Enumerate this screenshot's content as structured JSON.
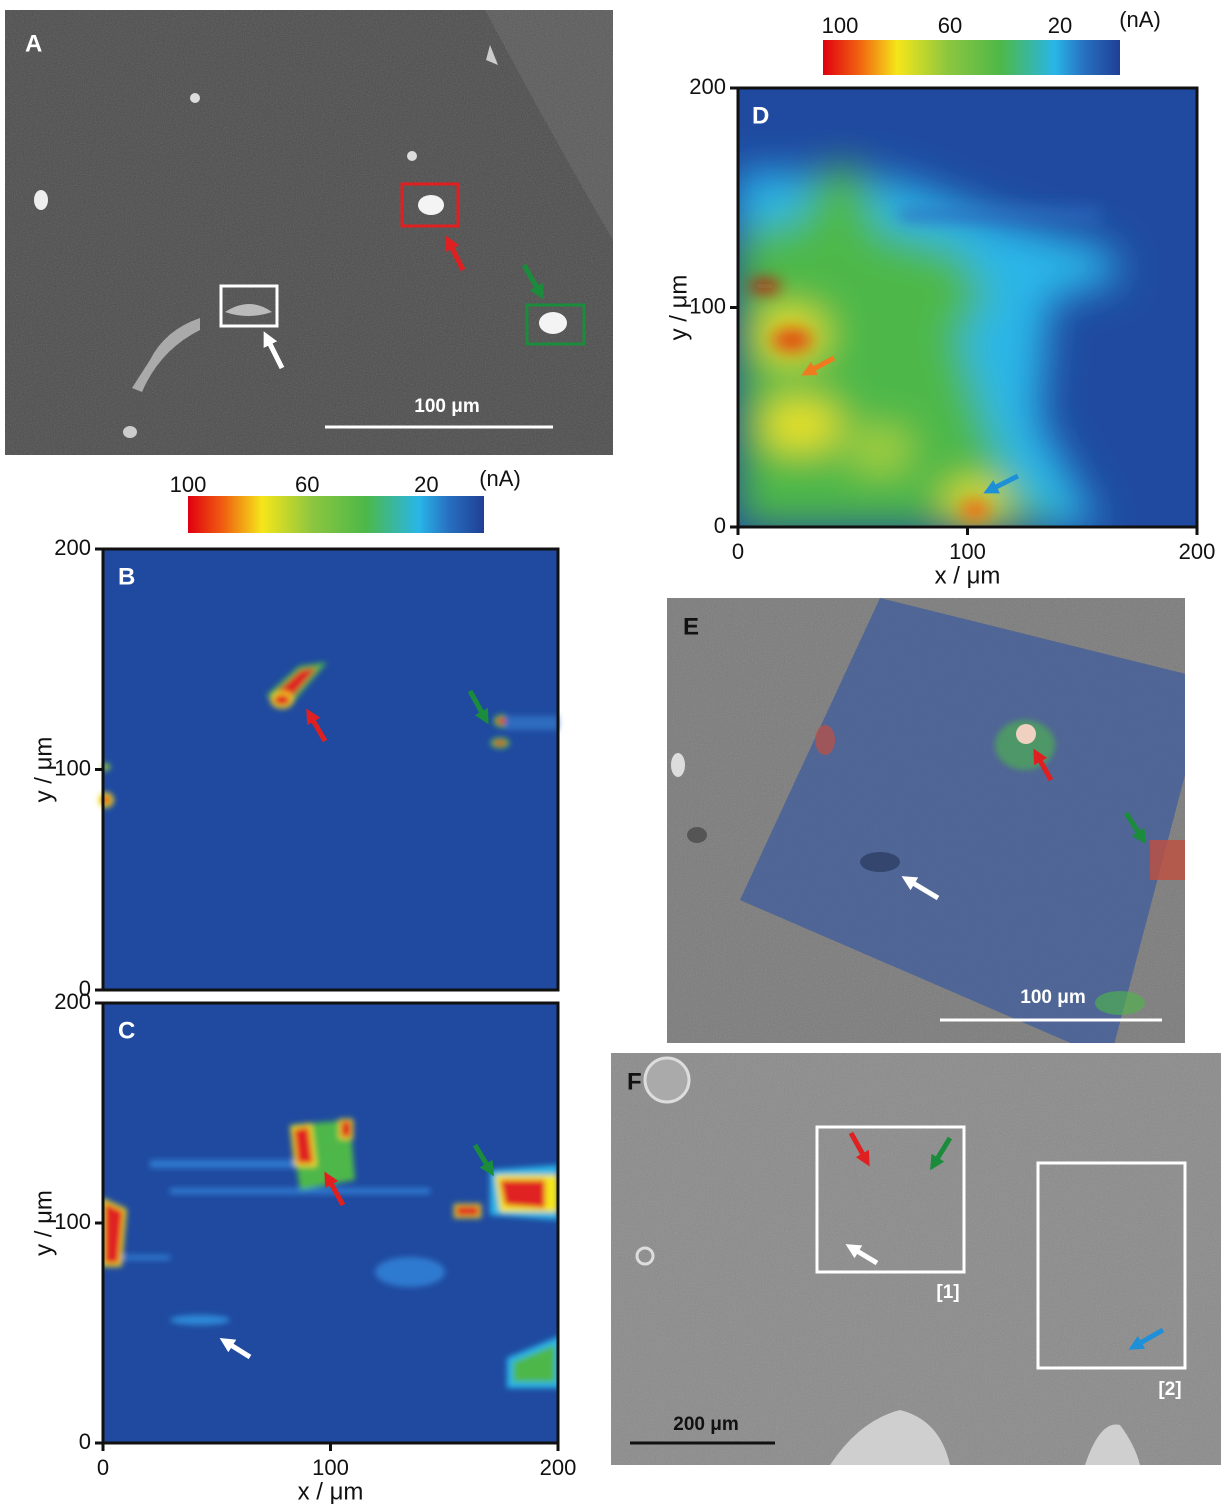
{
  "panels": [
    {
      "label": "A",
      "scale_bar": "100 μm"
    },
    {
      "label": "B",
      "y_label": "y / μm",
      "yticks": [
        0,
        100,
        200
      ]
    },
    {
      "label": "C",
      "x_label": "x / μm",
      "y_label": "y / μm",
      "xticks": [
        0,
        100,
        200
      ],
      "yticks": [
        0,
        100,
        200
      ]
    },
    {
      "label": "D",
      "x_label": "x / μm",
      "y_label": "y / μm",
      "xticks": [
        0,
        100,
        200
      ],
      "yticks": [
        0,
        100,
        200
      ]
    },
    {
      "label": "E",
      "scale_bar": "100 μm"
    },
    {
      "label": "F",
      "scale_bar": "200 μm",
      "regions": [
        "[1]",
        "[2]"
      ]
    }
  ],
  "colorbars": [
    {
      "ticks": [
        100,
        60,
        20
      ],
      "unit": "(nA)"
    },
    {
      "ticks": [
        100,
        60,
        20
      ],
      "unit": "(nA)"
    }
  ]
}
